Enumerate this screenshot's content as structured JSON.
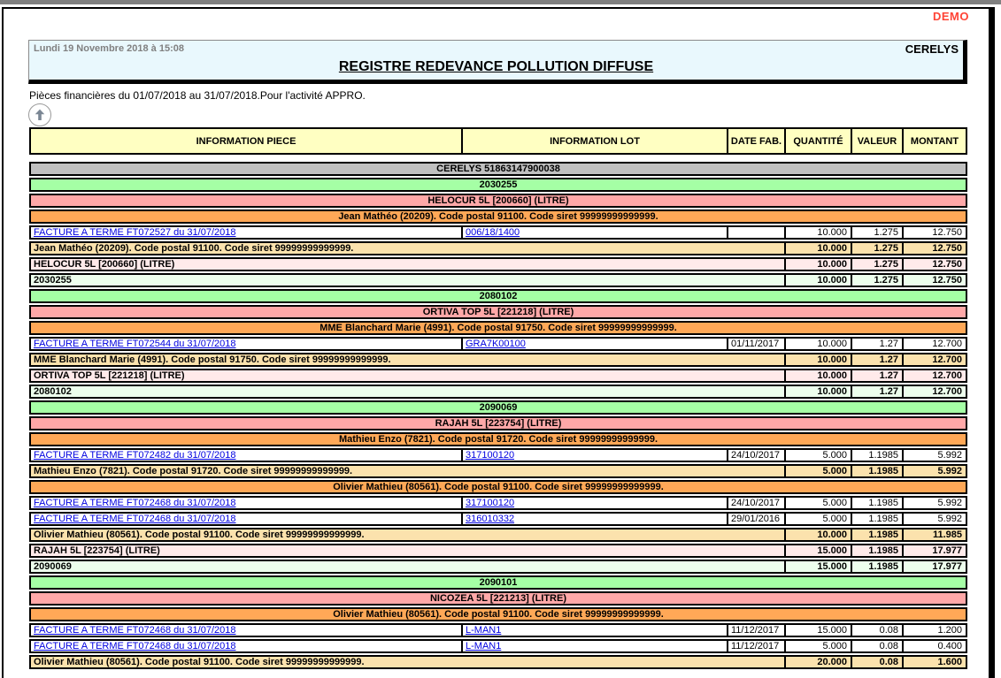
{
  "page": {
    "demo_label": "DEMO",
    "header": {
      "datetime": "Lundi 19 Novembre 2018 à 15:08",
      "company": "CERELYS",
      "title": "REGISTRE REDEVANCE POLLUTION DIFFUSE"
    },
    "subtitle": "Pièces financières  du 01/07/2018 au 31/07/2018.Pour l'activité APPRO."
  },
  "colors": {
    "demo": "#ff4436",
    "header_box_bg": "#e9f8fd",
    "table_header_bg": "#ffffc2",
    "company_band_bg": "#c0c0c0",
    "group_bg": "#a5ffa5",
    "group_subtotal_bg": "#edffed",
    "product_bg": "#ffa8a8",
    "product_subtotal_bg": "#ffeaea",
    "client_bg": "#ffa857",
    "client_subtotal_bg": "#fbe2ad",
    "link": "#0000e0"
  },
  "table": {
    "columns": [
      "INFORMATION PIECE",
      "INFORMATION LOT",
      "DATE FAB.",
      "QUANTITÉ",
      "VALEUR",
      "MONTANT"
    ],
    "rows": [
      {
        "type": "band",
        "style": "company",
        "label": "CERELYS 51863147900038"
      },
      {
        "type": "band",
        "style": "group",
        "label": "2030255"
      },
      {
        "type": "band",
        "style": "product",
        "label": "HELOCUR 5L [200660] (LITRE)"
      },
      {
        "type": "band",
        "style": "client",
        "label": "Jean Mathéo (20209). Code postal 91100. Code siret 99999999999999."
      },
      {
        "type": "data",
        "piece": "FACTURE A TERME FT072527 du 31/07/2018",
        "lot": "006/18/1400",
        "date": "",
        "qty": "10.000",
        "val": "1.275",
        "mnt": "12.750"
      },
      {
        "type": "subtotal",
        "style": "client",
        "label": "Jean Mathéo (20209). Code postal 91100. Code siret 99999999999999.",
        "qty": "10.000",
        "val": "1.275",
        "mnt": "12.750"
      },
      {
        "type": "subtotal",
        "style": "product",
        "label": "HELOCUR 5L [200660] (LITRE)",
        "qty": "10.000",
        "val": "1.275",
        "mnt": "12.750"
      },
      {
        "type": "subtotal",
        "style": "group",
        "label": "2030255",
        "qty": "10.000",
        "val": "1.275",
        "mnt": "12.750"
      },
      {
        "type": "band",
        "style": "group",
        "label": "2080102"
      },
      {
        "type": "band",
        "style": "product",
        "label": "ORTIVA TOP 5L [221218] (LITRE)"
      },
      {
        "type": "band",
        "style": "client",
        "label": "MME Blanchard Marie (4991). Code postal 91750. Code siret 99999999999999."
      },
      {
        "type": "data",
        "piece": "FACTURE A TERME FT072544 du 31/07/2018",
        "lot": "GRA7K00100",
        "date": "01/11/2017",
        "qty": "10.000",
        "val": "1.27",
        "mnt": "12.700"
      },
      {
        "type": "subtotal",
        "style": "client",
        "label": "MME Blanchard Marie (4991). Code postal 91750. Code siret 99999999999999.",
        "qty": "10.000",
        "val": "1.27",
        "mnt": "12.700"
      },
      {
        "type": "subtotal",
        "style": "product",
        "label": "ORTIVA TOP 5L [221218] (LITRE)",
        "qty": "10.000",
        "val": "1.27",
        "mnt": "12.700"
      },
      {
        "type": "subtotal",
        "style": "group",
        "label": "2080102",
        "qty": "10.000",
        "val": "1.27",
        "mnt": "12.700"
      },
      {
        "type": "band",
        "style": "group",
        "label": "2090069"
      },
      {
        "type": "band",
        "style": "product",
        "label": "RAJAH 5L [223754] (LITRE)"
      },
      {
        "type": "band",
        "style": "client",
        "label": "Mathieu Enzo (7821). Code postal 91720. Code siret 99999999999999."
      },
      {
        "type": "data",
        "piece": "FACTURE A TERME FT072482 du 31/07/2018",
        "lot": "317100120",
        "date": "24/10/2017",
        "qty": "5.000",
        "val": "1.1985",
        "mnt": "5.992"
      },
      {
        "type": "subtotal",
        "style": "client",
        "label": "Mathieu Enzo (7821). Code postal 91720. Code siret 99999999999999.",
        "qty": "5.000",
        "val": "1.1985",
        "mnt": "5.992"
      },
      {
        "type": "band",
        "style": "client",
        "label": "Olivier Mathieu (80561). Code postal 91100. Code siret 99999999999999."
      },
      {
        "type": "data",
        "piece": "FACTURE A TERME FT072468 du 31/07/2018",
        "lot": "317100120",
        "date": "24/10/2017",
        "qty": "5.000",
        "val": "1.1985",
        "mnt": "5.992"
      },
      {
        "type": "data",
        "piece": "FACTURE A TERME FT072468 du 31/07/2018",
        "lot": "316010332",
        "date": "29/01/2016",
        "qty": "5.000",
        "val": "1.1985",
        "mnt": "5.992"
      },
      {
        "type": "subtotal",
        "style": "client",
        "label": "Olivier Mathieu (80561). Code postal 91100. Code siret 99999999999999.",
        "qty": "10.000",
        "val": "1.1985",
        "mnt": "11.985"
      },
      {
        "type": "subtotal",
        "style": "product",
        "label": "RAJAH 5L [223754] (LITRE)",
        "qty": "15.000",
        "val": "1.1985",
        "mnt": "17.977"
      },
      {
        "type": "subtotal",
        "style": "group",
        "label": "2090069",
        "qty": "15.000",
        "val": "1.1985",
        "mnt": "17.977"
      },
      {
        "type": "band",
        "style": "group",
        "label": "2090101"
      },
      {
        "type": "band",
        "style": "product",
        "label": "NICOZEA 5L [221213] (LITRE)"
      },
      {
        "type": "band",
        "style": "client",
        "label": "Olivier Mathieu (80561). Code postal 91100. Code siret 99999999999999."
      },
      {
        "type": "data",
        "piece": "FACTURE A TERME FT072468 du 31/07/2018",
        "lot": "L-MAN1",
        "date": "11/12/2017",
        "qty": "15.000",
        "val": "0.08",
        "mnt": "1.200"
      },
      {
        "type": "data",
        "piece": "FACTURE A TERME FT072468 du 31/07/2018",
        "lot": "L-MAN1",
        "date": "11/12/2017",
        "qty": "5.000",
        "val": "0.08",
        "mnt": "0.400"
      },
      {
        "type": "subtotal",
        "style": "client",
        "label": "Olivier Mathieu (80561). Code postal 91100. Code siret 99999999999999.",
        "qty": "20.000",
        "val": "0.08",
        "mnt": "1.600"
      }
    ]
  }
}
